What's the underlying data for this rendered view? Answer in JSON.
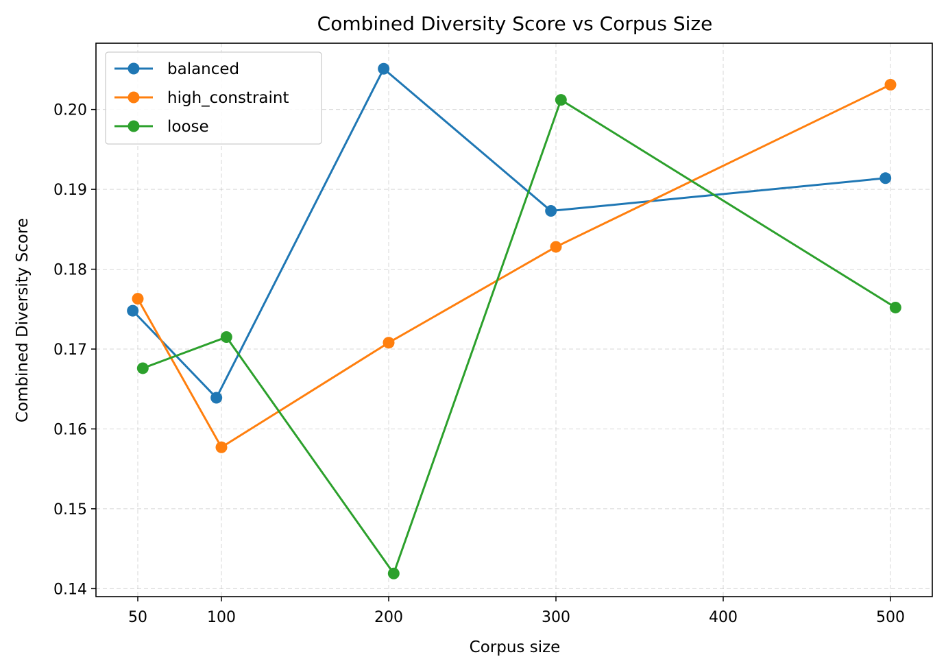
{
  "chart_data": {
    "type": "line",
    "title": "Combined Diversity Score vs Corpus Size",
    "xlabel": "Corpus size",
    "ylabel": "Combined Diversity Score",
    "xlim": [
      25,
      525
    ],
    "ylim": [
      0.139,
      0.2083
    ],
    "xticks": [
      50,
      100,
      200,
      300,
      400,
      500
    ],
    "yticks": [
      0.14,
      0.15,
      0.16,
      0.17,
      0.18,
      0.19,
      0.2
    ],
    "ytick_labels": [
      "0.14",
      "0.15",
      "0.16",
      "0.17",
      "0.18",
      "0.19",
      "0.20"
    ],
    "grid": true,
    "legend_position": "top-left",
    "series": [
      {
        "name": "balanced",
        "color": "#1f77b4",
        "points": [
          {
            "x": 47,
            "y": 0.1748
          },
          {
            "x": 97,
            "y": 0.1639
          },
          {
            "x": 197,
            "y": 0.2051
          },
          {
            "x": 297,
            "y": 0.1873
          },
          {
            "x": 497,
            "y": 0.1914
          }
        ]
      },
      {
        "name": "high_constraint",
        "color": "#ff7f0e",
        "points": [
          {
            "x": 50,
            "y": 0.1763
          },
          {
            "x": 100,
            "y": 0.1577
          },
          {
            "x": 200,
            "y": 0.1708
          },
          {
            "x": 300,
            "y": 0.1828
          },
          {
            "x": 500,
            "y": 0.2031
          }
        ]
      },
      {
        "name": "loose",
        "color": "#2ca02c",
        "points": [
          {
            "x": 53,
            "y": 0.1676
          },
          {
            "x": 103,
            "y": 0.1715
          },
          {
            "x": 203,
            "y": 0.1419
          },
          {
            "x": 303,
            "y": 0.2012
          },
          {
            "x": 503,
            "y": 0.1752
          }
        ]
      }
    ]
  }
}
